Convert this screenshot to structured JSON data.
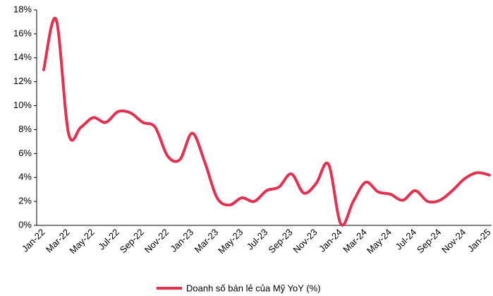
{
  "chart_data": {
    "type": "line",
    "categories": [
      "Jan-22",
      null,
      "Mar-22",
      null,
      "May-22",
      null,
      "Jul-22",
      null,
      "Sep-22",
      null,
      "Nov-22",
      null,
      "Jan-23",
      null,
      "Mar-23",
      null,
      "May-23",
      null,
      "Jul-23",
      null,
      "Sep-23",
      null,
      "Nov-23",
      null,
      "Jan-24",
      null,
      "Mar-24",
      null,
      "May-24",
      null,
      "Jul-24",
      null,
      "Sep-24",
      null,
      "Nov-24",
      null,
      "Jan-25"
    ],
    "series": [
      {
        "name": "Doanh số bán lẻ của Mỹ YoY (%)",
        "color": "#e5304f",
        "values": [
          13.0,
          17.2,
          7.7,
          8.2,
          9.0,
          8.6,
          9.5,
          9.4,
          8.6,
          8.2,
          5.8,
          5.5,
          7.7,
          5.3,
          2.3,
          1.7,
          2.3,
          2.0,
          2.9,
          3.2,
          4.3,
          2.7,
          3.5,
          5.1,
          0.1,
          2.0,
          3.6,
          2.8,
          2.6,
          2.1,
          2.9,
          2.0,
          2.1,
          2.9,
          3.9,
          4.4,
          4.2
        ]
      }
    ],
    "ylim": [
      0,
      18
    ],
    "yticks": [
      {
        "value": 0,
        "label": "0%"
      },
      {
        "value": 2,
        "label": "2%"
      },
      {
        "value": 4,
        "label": "4%"
      },
      {
        "value": 6,
        "label": "6%"
      },
      {
        "value": 8,
        "label": "8%"
      },
      {
        "value": 10,
        "label": "10%"
      },
      {
        "value": 12,
        "label": "12%"
      },
      {
        "value": 14,
        "label": "14%"
      },
      {
        "value": 16,
        "label": "16%"
      },
      {
        "value": 18,
        "label": "18%"
      }
    ],
    "grid": false,
    "legend": "bottom"
  }
}
